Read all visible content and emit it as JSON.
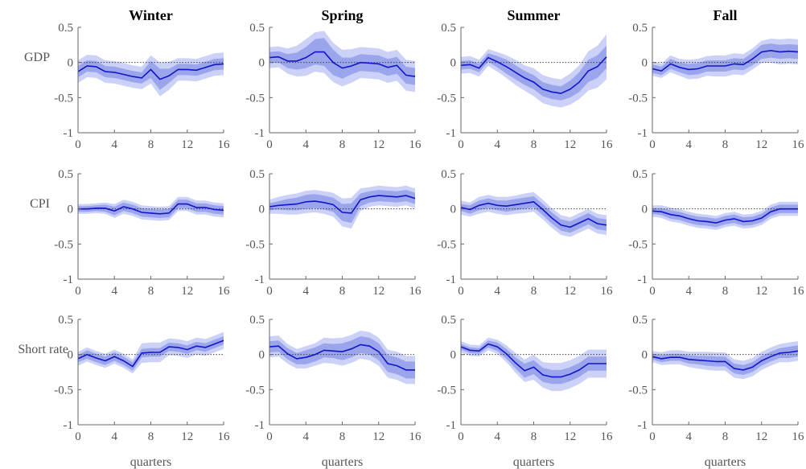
{
  "chart_data": {
    "type": "line",
    "columns": [
      "Winter",
      "Spring",
      "Summer",
      "Fall"
    ],
    "rows": [
      "GDP",
      "CPI",
      "Short rate"
    ],
    "xlabel": "quarters",
    "x": [
      0,
      1,
      2,
      3,
      4,
      5,
      6,
      7,
      8,
      9,
      10,
      11,
      12,
      13,
      14,
      15,
      16
    ],
    "xticks": [
      0,
      4,
      8,
      12,
      16
    ],
    "xlim": [
      0,
      16
    ],
    "ylim": [
      -1,
      0.5
    ],
    "yticks": [
      -1,
      -0.5,
      0,
      0.5
    ],
    "ytick_labels": [
      "-1",
      "-0.5",
      "0",
      "0.5"
    ],
    "grid": false,
    "zero_line": true,
    "bands": [
      "outer",
      "inner"
    ],
    "colors": {
      "median": "#1414c8",
      "inner_band": "#9aa5ec",
      "outer_band": "#cbd1f7",
      "zero_line": "#444444"
    },
    "panels": [
      [
        {
          "median": [
            -0.13,
            -0.05,
            -0.06,
            -0.13,
            -0.14,
            -0.17,
            -0.2,
            -0.22,
            -0.1,
            -0.24,
            -0.19,
            -0.1,
            -0.1,
            -0.11,
            -0.07,
            -0.03,
            -0.02
          ],
          "inner": [
            0.08,
            0.08,
            0.08,
            0.08,
            0.08,
            0.08,
            0.08,
            0.08,
            0.12,
            0.15,
            0.1,
            0.08,
            0.08,
            0.08,
            0.08,
            0.08,
            0.08
          ],
          "outer": [
            0.16,
            0.16,
            0.16,
            0.16,
            0.16,
            0.16,
            0.16,
            0.16,
            0.2,
            0.24,
            0.2,
            0.16,
            0.16,
            0.16,
            0.16,
            0.16,
            0.16
          ]
        },
        {
          "median": [
            0.07,
            0.08,
            0.02,
            0.02,
            0.07,
            0.15,
            0.15,
            0,
            -0.08,
            -0.05,
            0,
            -0.01,
            -0.02,
            -0.07,
            -0.04,
            -0.18,
            -0.2
          ],
          "inner": [
            0.08,
            0.08,
            0.1,
            0.12,
            0.15,
            0.18,
            0.2,
            0.18,
            0.15,
            0.12,
            0.12,
            0.12,
            0.12,
            0.12,
            0.12,
            0.12,
            0.12
          ],
          "outer": [
            0.15,
            0.15,
            0.18,
            0.22,
            0.26,
            0.28,
            0.3,
            0.28,
            0.26,
            0.24,
            0.22,
            0.22,
            0.22,
            0.22,
            0.22,
            0.22,
            0.22
          ]
        },
        {
          "median": [
            -0.04,
            -0.03,
            -0.08,
            0.07,
            0.01,
            -0.06,
            -0.14,
            -0.22,
            -0.28,
            -0.38,
            -0.42,
            -0.44,
            -0.38,
            -0.28,
            -0.12,
            -0.06,
            0.08
          ],
          "inner": [
            0.06,
            0.06,
            0.06,
            0.06,
            0.08,
            0.1,
            0.1,
            0.1,
            0.1,
            0.1,
            0.1,
            0.1,
            0.12,
            0.14,
            0.16,
            0.16,
            0.16
          ],
          "outer": [
            0.12,
            0.12,
            0.12,
            0.12,
            0.14,
            0.16,
            0.18,
            0.18,
            0.2,
            0.2,
            0.2,
            0.2,
            0.22,
            0.24,
            0.28,
            0.3,
            0.32
          ]
        },
        {
          "median": [
            -0.09,
            -0.12,
            -0.02,
            -0.07,
            -0.1,
            -0.09,
            -0.05,
            -0.05,
            -0.05,
            -0.02,
            -0.03,
            0.05,
            0.15,
            0.17,
            0.15,
            0.16,
            0.15
          ],
          "inner": [
            0.06,
            0.06,
            0.07,
            0.07,
            0.08,
            0.08,
            0.08,
            0.08,
            0.08,
            0.08,
            0.08,
            0.09,
            0.1,
            0.1,
            0.1,
            0.1,
            0.1
          ],
          "outer": [
            0.1,
            0.1,
            0.12,
            0.12,
            0.14,
            0.14,
            0.14,
            0.15,
            0.15,
            0.15,
            0.15,
            0.15,
            0.16,
            0.17,
            0.18,
            0.18,
            0.18
          ]
        }
      ],
      [
        {
          "median": [
            0,
            0,
            0.01,
            0.01,
            -0.03,
            0.03,
            0,
            -0.05,
            -0.06,
            -0.07,
            -0.06,
            0.07,
            0.07,
            0.02,
            0.02,
            -0.01,
            -0.02
          ],
          "inner": [
            0.04,
            0.04,
            0.04,
            0.05,
            0.06,
            0.06,
            0.06,
            0.06,
            0.06,
            0.06,
            0.06,
            0.06,
            0.06,
            0.06,
            0.06,
            0.06,
            0.06
          ],
          "outer": [
            0.07,
            0.07,
            0.07,
            0.08,
            0.1,
            0.1,
            0.1,
            0.1,
            0.1,
            0.1,
            0.1,
            0.1,
            0.1,
            0.1,
            0.1,
            0.1,
            0.1
          ]
        },
        {
          "median": [
            0.03,
            0.05,
            0.06,
            0.07,
            0.1,
            0.11,
            0.09,
            0.06,
            -0.05,
            -0.06,
            0.13,
            0.17,
            0.19,
            0.18,
            0.17,
            0.19,
            0.15
          ],
          "inner": [
            0.05,
            0.06,
            0.08,
            0.09,
            0.1,
            0.1,
            0.1,
            0.1,
            0.12,
            0.14,
            0.09,
            0.08,
            0.08,
            0.08,
            0.08,
            0.08,
            0.08
          ],
          "outer": [
            0.1,
            0.12,
            0.14,
            0.15,
            0.16,
            0.16,
            0.16,
            0.17,
            0.2,
            0.22,
            0.16,
            0.14,
            0.14,
            0.14,
            0.14,
            0.14,
            0.14
          ]
        },
        {
          "median": [
            0.02,
            -0.01,
            0.05,
            0.08,
            0.05,
            0.04,
            0.06,
            0.08,
            0.1,
            -0.01,
            -0.13,
            -0.23,
            -0.26,
            -0.2,
            -0.14,
            -0.21,
            -0.23
          ],
          "inner": [
            0.05,
            0.06,
            0.07,
            0.07,
            0.07,
            0.08,
            0.08,
            0.08,
            0.08,
            0.08,
            0.08,
            0.08,
            0.08,
            0.08,
            0.08,
            0.08,
            0.08
          ],
          "outer": [
            0.1,
            0.1,
            0.12,
            0.12,
            0.12,
            0.13,
            0.13,
            0.14,
            0.14,
            0.14,
            0.14,
            0.14,
            0.14,
            0.14,
            0.14,
            0.14,
            0.14
          ]
        },
        {
          "median": [
            -0.03,
            -0.04,
            -0.08,
            -0.1,
            -0.14,
            -0.17,
            -0.18,
            -0.2,
            -0.16,
            -0.14,
            -0.18,
            -0.17,
            -0.13,
            -0.04,
            0,
            0,
            0
          ],
          "inner": [
            0.04,
            0.05,
            0.06,
            0.06,
            0.06,
            0.06,
            0.06,
            0.06,
            0.06,
            0.06,
            0.06,
            0.06,
            0.06,
            0.06,
            0.06,
            0.06,
            0.06
          ],
          "outer": [
            0.08,
            0.09,
            0.1,
            0.1,
            0.1,
            0.1,
            0.1,
            0.1,
            0.1,
            0.1,
            0.1,
            0.1,
            0.1,
            0.1,
            0.1,
            0.1,
            0.1
          ]
        }
      ],
      [
        {
          "median": [
            -0.06,
            0,
            -0.05,
            -0.09,
            -0.03,
            -0.09,
            -0.17,
            0.02,
            0.03,
            0.03,
            0.11,
            0.1,
            0.07,
            0.12,
            0.1,
            0.15,
            0.2
          ],
          "inner": [
            0.05,
            0.06,
            0.06,
            0.06,
            0.06,
            0.06,
            0.06,
            0.06,
            0.06,
            0.06,
            0.06,
            0.06,
            0.06,
            0.06,
            0.06,
            0.06,
            0.06
          ],
          "outer": [
            0.1,
            0.1,
            0.1,
            0.1,
            0.1,
            0.1,
            0.1,
            0.14,
            0.14,
            0.14,
            0.12,
            0.12,
            0.12,
            0.12,
            0.12,
            0.12,
            0.12
          ]
        },
        {
          "median": [
            0.11,
            0.12,
            0.01,
            -0.06,
            -0.04,
            0,
            0.06,
            0.05,
            0.04,
            0.08,
            0.14,
            0.12,
            0.04,
            -0.13,
            -0.16,
            -0.22,
            -0.22
          ],
          "inner": [
            0.08,
            0.08,
            0.08,
            0.08,
            0.1,
            0.1,
            0.1,
            0.1,
            0.12,
            0.12,
            0.12,
            0.12,
            0.12,
            0.12,
            0.12,
            0.12,
            0.12
          ],
          "outer": [
            0.15,
            0.15,
            0.14,
            0.14,
            0.16,
            0.16,
            0.18,
            0.18,
            0.2,
            0.2,
            0.2,
            0.2,
            0.2,
            0.2,
            0.2,
            0.2,
            0.2
          ]
        },
        {
          "median": [
            0.11,
            0.06,
            0.05,
            0.15,
            0.11,
            0.01,
            -0.12,
            -0.23,
            -0.18,
            -0.29,
            -0.32,
            -0.32,
            -0.28,
            -0.22,
            -0.13,
            -0.13,
            -0.13
          ],
          "inner": [
            0.04,
            0.04,
            0.04,
            0.05,
            0.06,
            0.07,
            0.08,
            0.1,
            0.1,
            0.1,
            0.1,
            0.1,
            0.1,
            0.1,
            0.1,
            0.1,
            0.1
          ],
          "outer": [
            0.08,
            0.08,
            0.08,
            0.09,
            0.1,
            0.12,
            0.14,
            0.16,
            0.18,
            0.18,
            0.2,
            0.2,
            0.2,
            0.2,
            0.2,
            0.2,
            0.2
          ]
        },
        {
          "median": [
            -0.03,
            -0.06,
            -0.04,
            -0.04,
            -0.07,
            -0.08,
            -0.09,
            -0.1,
            -0.1,
            -0.2,
            -0.22,
            -0.18,
            -0.09,
            -0.03,
            0.02,
            0.03,
            0.05
          ],
          "inner": [
            0.04,
            0.05,
            0.05,
            0.05,
            0.06,
            0.06,
            0.07,
            0.07,
            0.07,
            0.07,
            0.07,
            0.07,
            0.07,
            0.07,
            0.07,
            0.08,
            0.08
          ],
          "outer": [
            0.08,
            0.09,
            0.1,
            0.1,
            0.11,
            0.12,
            0.13,
            0.13,
            0.13,
            0.13,
            0.13,
            0.13,
            0.13,
            0.13,
            0.13,
            0.14,
            0.14
          ]
        }
      ]
    ]
  }
}
